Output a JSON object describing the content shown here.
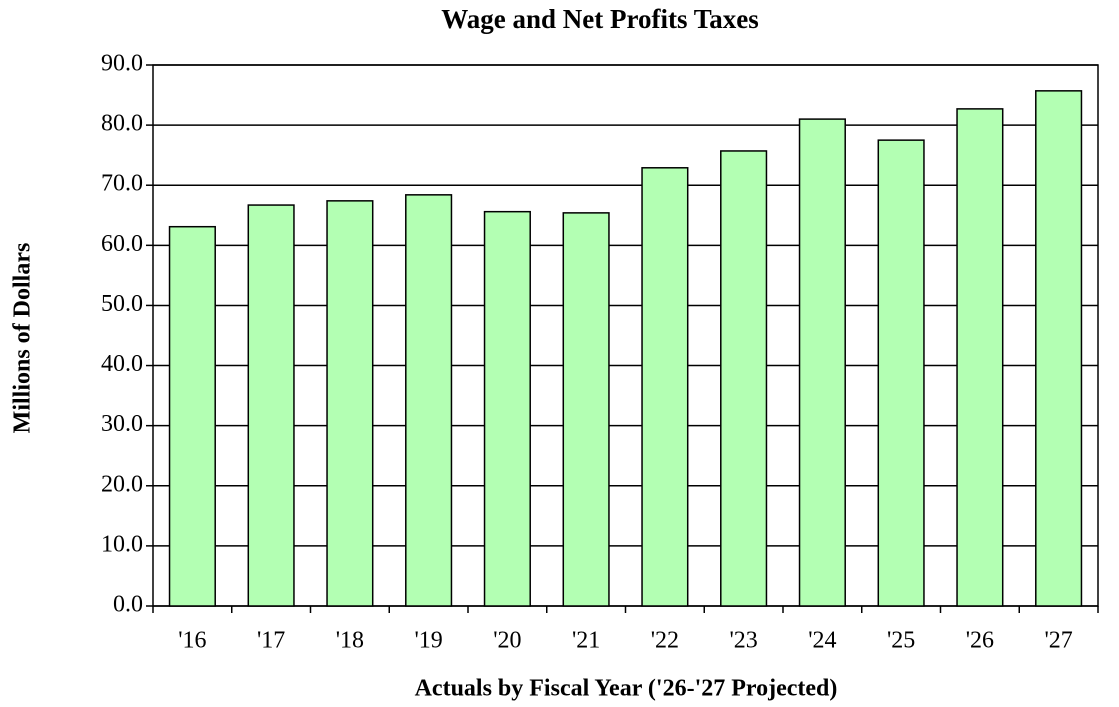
{
  "chart_data": {
    "type": "bar",
    "title": "Wage and Net Profits Taxes",
    "x_label": "Actuals by Fiscal Year ('26-'27 Projected)",
    "y_label": "Millions of Dollars",
    "categories": [
      "'16",
      "'17",
      "'18",
      "'19",
      "'20",
      "'21",
      "'22",
      "'23",
      "'24",
      "'25",
      "'26",
      "'27"
    ],
    "values": [
      63.1,
      66.7,
      67.4,
      68.4,
      65.6,
      65.4,
      72.9,
      75.7,
      81.0,
      77.5,
      82.7,
      85.7
    ],
    "color": "#b3ffb3",
    "ylim": [
      0,
      90
    ],
    "yticks": [
      {
        "value": 0,
        "label": "0.0"
      },
      {
        "value": 10,
        "label": "10.0"
      },
      {
        "value": 20,
        "label": "20.0"
      },
      {
        "value": 30,
        "label": "30.0"
      },
      {
        "value": 40,
        "label": "40.0"
      },
      {
        "value": 50,
        "label": "50.0"
      },
      {
        "value": 60,
        "label": "60.0"
      },
      {
        "value": 70,
        "label": "70.0"
      },
      {
        "value": 80,
        "label": "80.0"
      },
      {
        "value": 90,
        "label": "90.0"
      }
    ],
    "grid": true
  }
}
